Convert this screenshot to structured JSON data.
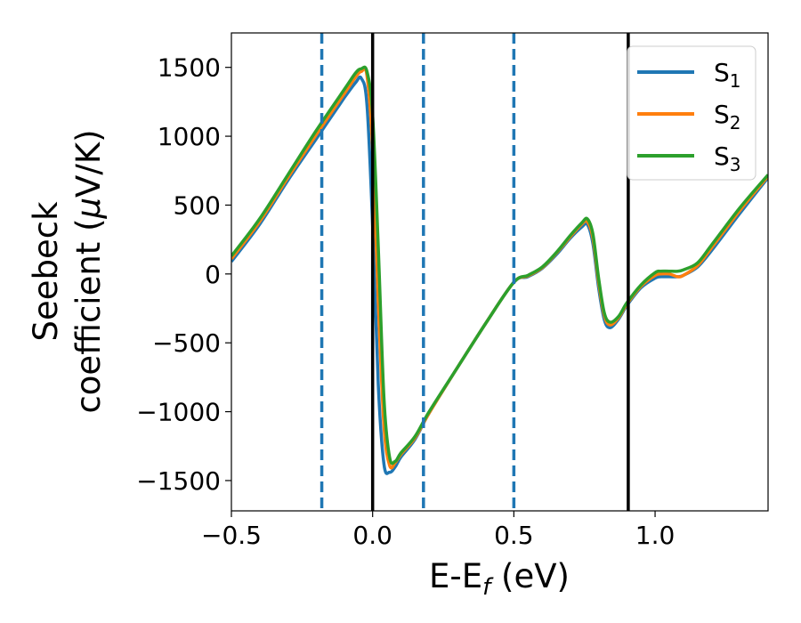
{
  "chart_data": {
    "type": "line",
    "title": "",
    "xlabel": "E-E",
    "xlabel_sub": "f",
    "xlabel_unit": " (eV)",
    "ylabel_line1": "Seebeck",
    "ylabel_line2": "coefficient  (",
    "ylabel_mu": "μ",
    "ylabel_unit": "V/K)",
    "xlim": [
      -0.5,
      1.4
    ],
    "ylim": [
      -1720,
      1750
    ],
    "xticks": [
      {
        "value": -0.5,
        "label": "−0.5"
      },
      {
        "value": 0.0,
        "label": "0.0"
      },
      {
        "value": 0.5,
        "label": "0.5"
      },
      {
        "value": 1.0,
        "label": "1.0"
      }
    ],
    "yticks": [
      {
        "value": 1500,
        "label": "1500"
      },
      {
        "value": 1000,
        "label": "1000"
      },
      {
        "value": 500,
        "label": "500"
      },
      {
        "value": 0,
        "label": "0"
      },
      {
        "value": -500,
        "label": "−500"
      },
      {
        "value": -1000,
        "label": "−1000"
      },
      {
        "value": -1500,
        "label": "−1500"
      }
    ],
    "grid": false,
    "legend_position": "top-right",
    "vlines_solid": [
      0.0,
      0.905
    ],
    "vlines_dashed": [
      -0.18,
      0.18,
      0.5
    ],
    "vline_solid_color": "#000000",
    "vline_dashed_color": "#1f77b4",
    "series": [
      {
        "name": "S",
        "sub": "1",
        "color": "#1f77b4",
        "x": [
          -0.5,
          -0.4,
          -0.3,
          -0.2,
          -0.1,
          -0.06,
          -0.04,
          -0.02,
          0.0,
          0.02,
          0.04,
          0.06,
          0.08,
          0.1,
          0.15,
          0.2,
          0.3,
          0.4,
          0.5,
          0.55,
          0.6,
          0.65,
          0.7,
          0.74,
          0.76,
          0.78,
          0.8,
          0.82,
          0.84,
          0.87,
          0.9,
          0.95,
          1.0,
          1.02,
          1.05,
          1.08,
          1.1,
          1.15,
          1.2,
          1.3,
          1.4
        ],
        "y": [
          90,
          360,
          680,
          980,
          1280,
          1390,
          1420,
          1230,
          350,
          -800,
          -1380,
          -1440,
          -1400,
          -1330,
          -1200,
          -1010,
          -680,
          -360,
          -60,
          -20,
          40,
          140,
          260,
          340,
          360,
          220,
          -100,
          -330,
          -390,
          -330,
          -230,
          -100,
          -30,
          -20,
          -20,
          -20,
          -10,
          50,
          170,
          440,
          700
        ]
      },
      {
        "name": "S",
        "sub": "2",
        "color": "#ff7f0e",
        "x": [
          -0.5,
          -0.4,
          -0.3,
          -0.2,
          -0.1,
          -0.06,
          -0.04,
          -0.02,
          0.0,
          0.02,
          0.04,
          0.06,
          0.08,
          0.1,
          0.15,
          0.2,
          0.3,
          0.4,
          0.5,
          0.55,
          0.6,
          0.65,
          0.7,
          0.74,
          0.76,
          0.78,
          0.8,
          0.82,
          0.84,
          0.87,
          0.9,
          0.95,
          1.0,
          1.02,
          1.05,
          1.08,
          1.1,
          1.15,
          1.2,
          1.3,
          1.4
        ],
        "y": [
          110,
          380,
          700,
          1010,
          1310,
          1430,
          1470,
          1440,
          900,
          -200,
          -1100,
          -1390,
          -1370,
          -1310,
          -1190,
          -1010,
          -680,
          -360,
          -60,
          -15,
          45,
          150,
          270,
          360,
          380,
          260,
          -60,
          -300,
          -370,
          -320,
          -220,
          -90,
          -10,
          0,
          0,
          -20,
          -10,
          60,
          190,
          460,
          710
        ]
      },
      {
        "name": "S",
        "sub": "3",
        "color": "#2ca02c",
        "x": [
          -0.5,
          -0.4,
          -0.3,
          -0.2,
          -0.1,
          -0.06,
          -0.04,
          -0.02,
          0.0,
          0.02,
          0.04,
          0.06,
          0.08,
          0.1,
          0.15,
          0.2,
          0.3,
          0.4,
          0.5,
          0.55,
          0.6,
          0.65,
          0.7,
          0.74,
          0.76,
          0.78,
          0.8,
          0.82,
          0.84,
          0.87,
          0.9,
          0.95,
          1.0,
          1.02,
          1.05,
          1.08,
          1.1,
          1.15,
          1.2,
          1.3,
          1.4
        ],
        "y": [
          130,
          400,
          720,
          1040,
          1340,
          1460,
          1490,
          1470,
          1150,
          200,
          -900,
          -1330,
          -1360,
          -1300,
          -1180,
          -1000,
          -680,
          -360,
          -60,
          -10,
          50,
          155,
          280,
          370,
          400,
          290,
          -30,
          -280,
          -350,
          -310,
          -210,
          -80,
          10,
          20,
          20,
          20,
          30,
          80,
          210,
          480,
          720
        ]
      }
    ]
  }
}
